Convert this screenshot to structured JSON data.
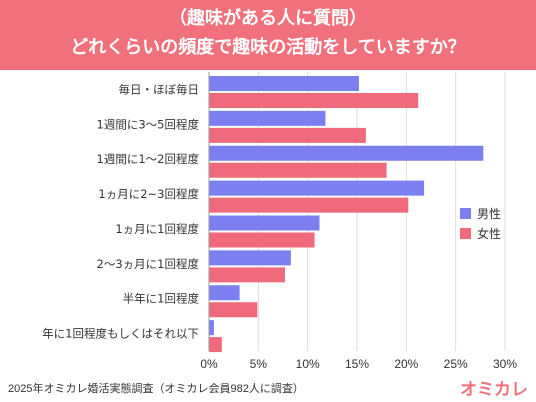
{
  "header": {
    "line1": "（趣味がある人に質問）",
    "line2": "どれくらいの頻度で趣味の活動をしていますか？"
  },
  "footer": {
    "source": "2025年オミカレ婚活実態調査（オミカレ会員982人に調査）",
    "brand": "オミカレ"
  },
  "colors": {
    "male": "#7b7ff0",
    "female": "#ef6a7b",
    "header": "#f0717c",
    "grid": "#dddddd"
  },
  "chart_data": {
    "type": "bar",
    "orientation": "horizontal",
    "categories": [
      "毎日・ほぼ毎日",
      "1週間に3〜5回程度",
      "1週間に1〜2回程度",
      "1ヵ月に2~3回程度",
      "1ヵ月に1回程度",
      "2〜3ヵ月に1回程度",
      "半年に1回程度",
      "年に1回程度もしくはそれ以下"
    ],
    "series": [
      {
        "name": "男性",
        "values": [
          15.2,
          11.8,
          27.8,
          21.8,
          11.2,
          8.3,
          3.1,
          0.5
        ]
      },
      {
        "name": "女性",
        "values": [
          21.2,
          15.9,
          18.0,
          20.2,
          10.7,
          7.7,
          4.9,
          1.3
        ]
      }
    ],
    "xlim": [
      0,
      30
    ],
    "xticks": [
      "0%",
      "5%",
      "10%",
      "15%",
      "20%",
      "25%",
      "30%"
    ],
    "grid": true,
    "legend": "right"
  }
}
